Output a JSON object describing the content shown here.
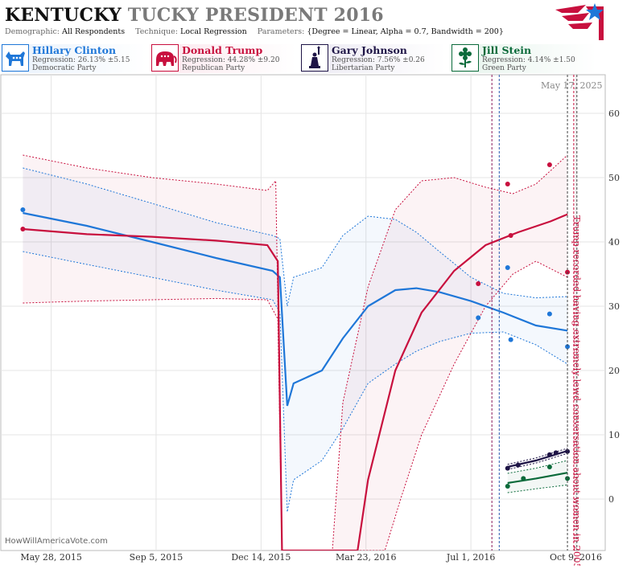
{
  "header": {
    "title_state": "KENTUCKY",
    "title_rest": "TUCKY PRESIDENT 2016",
    "demographic_label": "Demographic:",
    "demographic_value": "All Respondents",
    "technique_label": "Technique:",
    "technique_value": "Local Regression",
    "parameters_label": "Parameters:",
    "parameters_value": "{Degree = Linear, Alpha = 0.7, Bandwidth = 200}"
  },
  "candidates": [
    {
      "name": "Hillary Clinton",
      "regression": "Regression: 26.13% ±5.15",
      "party": "Democratic Party",
      "color": "#1f77d8",
      "bg": "#e8f1fb",
      "icon": "donkey-icon"
    },
    {
      "name": "Donald Trump",
      "regression": "Regression: 44.28% ±9.20",
      "party": "Republican Party",
      "color": "#c8103e",
      "bg": "#fbe8ee",
      "icon": "elephant-icon"
    },
    {
      "name": "Gary Johnson",
      "regression": "Regression: 7.56% ±0.26",
      "party": "Libertarian Party",
      "color": "#1e1446",
      "bg": "#eceaf3",
      "icon": "statue-of-liberty-icon"
    },
    {
      "name": "Jill Stein",
      "regression": "Regression: 4.14% ±1.50",
      "party": "Green Party",
      "color": "#0a6a3a",
      "bg": "#e6f3ec",
      "icon": "flower-icon"
    }
  ],
  "date_stamp": "May 17, 2025",
  "watermark": "HowWillAmericaVote.com",
  "annotation": "Trump recorded having extremely lewd conversation about women in 2005",
  "chart_data": {
    "type": "line",
    "x_ticks": [
      "May 28, 2015",
      "Sep 5, 2015",
      "Dec 14, 2015",
      "Mar 23, 2016",
      "Jul 1, 2016",
      "Oct 9, 2016"
    ],
    "y_ticks": [
      0,
      10,
      20,
      30,
      40,
      50,
      60
    ],
    "ylim": [
      -8,
      66
    ],
    "xlim": [
      "2015-04-10",
      "2016-11-06"
    ],
    "series": [
      {
        "name": "Hillary Clinton",
        "color": "#1f77d8",
        "line": [
          [
            "2015-05-01",
            44.5
          ],
          [
            "2015-07-01",
            42.5
          ],
          [
            "2015-09-01",
            40
          ],
          [
            "2015-11-01",
            37.5
          ],
          [
            "2015-12-25",
            35.5
          ],
          [
            "2016-01-01",
            34.5
          ],
          [
            "2016-01-08",
            14.5
          ],
          [
            "2016-01-14",
            18
          ],
          [
            "2016-02-10",
            20
          ],
          [
            "2016-03-01",
            25
          ],
          [
            "2016-03-25",
            30
          ],
          [
            "2016-04-20",
            32.5
          ],
          [
            "2016-05-10",
            32.8
          ],
          [
            "2016-06-01",
            32.2
          ],
          [
            "2016-07-01",
            30.8
          ],
          [
            "2016-08-01",
            29
          ],
          [
            "2016-09-01",
            27
          ],
          [
            "2016-10-01",
            26.2
          ]
        ],
        "upper": [
          [
            "2015-05-01",
            51.5
          ],
          [
            "2015-07-01",
            49
          ],
          [
            "2015-09-01",
            46
          ],
          [
            "2015-11-01",
            43
          ],
          [
            "2015-12-25",
            41
          ],
          [
            "2016-01-01",
            40.5
          ],
          [
            "2016-01-08",
            30
          ],
          [
            "2016-01-14",
            34.5
          ],
          [
            "2016-02-10",
            36
          ],
          [
            "2016-03-01",
            41
          ],
          [
            "2016-03-25",
            44
          ],
          [
            "2016-04-20",
            43.5
          ],
          [
            "2016-05-10",
            41.5
          ],
          [
            "2016-06-01",
            38.5
          ],
          [
            "2016-07-01",
            34.5
          ],
          [
            "2016-08-01",
            32
          ],
          [
            "2016-09-01",
            31.3
          ],
          [
            "2016-10-01",
            31.5
          ]
        ],
        "lower": [
          [
            "2015-05-01",
            38.5
          ],
          [
            "2015-07-01",
            36.5
          ],
          [
            "2015-09-01",
            34.5
          ],
          [
            "2015-11-01",
            32.5
          ],
          [
            "2015-12-25",
            31
          ],
          [
            "2016-01-01",
            29
          ],
          [
            "2016-01-08",
            -2
          ],
          [
            "2016-01-14",
            3
          ],
          [
            "2016-02-10",
            6
          ],
          [
            "2016-03-01",
            11
          ],
          [
            "2016-03-25",
            18
          ],
          [
            "2016-04-20",
            21
          ],
          [
            "2016-05-10",
            23
          ],
          [
            "2016-06-01",
            24.5
          ],
          [
            "2016-07-01",
            25.8
          ],
          [
            "2016-08-01",
            26
          ],
          [
            "2016-09-01",
            24
          ],
          [
            "2016-10-01",
            21
          ]
        ],
        "points": [
          [
            "2016-07-08",
            28.2
          ],
          [
            "2016-08-05",
            36
          ],
          [
            "2016-08-08",
            24.8
          ],
          [
            "2016-09-14",
            28.8
          ],
          [
            "2016-10-01",
            23.7
          ]
        ]
      },
      {
        "name": "Donald Trump",
        "color": "#c8103e",
        "line": [
          [
            "2015-05-01",
            42
          ],
          [
            "2015-07-01",
            41.2
          ],
          [
            "2015-09-01",
            40.8
          ],
          [
            "2015-11-01",
            40.2
          ],
          [
            "2015-12-20",
            39.5
          ],
          [
            "2015-12-30",
            37
          ],
          [
            "2016-01-03",
            -8
          ],
          [
            "2016-03-15",
            -8
          ],
          [
            "2016-03-25",
            3
          ],
          [
            "2016-04-20",
            20
          ],
          [
            "2016-05-15",
            29
          ],
          [
            "2016-06-15",
            35.5
          ],
          [
            "2016-07-15",
            39.5
          ],
          [
            "2016-08-15",
            41.5
          ],
          [
            "2016-09-15",
            43.2
          ],
          [
            "2016-10-01",
            44.3
          ]
        ],
        "upper": [
          [
            "2015-05-01",
            53.5
          ],
          [
            "2015-07-01",
            51.5
          ],
          [
            "2015-09-01",
            50
          ],
          [
            "2015-11-01",
            49
          ],
          [
            "2015-12-20",
            48
          ],
          [
            "2015-12-28",
            49.5
          ],
          [
            "2016-01-03",
            -8
          ],
          [
            "2016-02-20",
            -8
          ],
          [
            "2016-03-01",
            15
          ],
          [
            "2016-03-25",
            33
          ],
          [
            "2016-04-20",
            45
          ],
          [
            "2016-05-15",
            49.5
          ],
          [
            "2016-06-15",
            50
          ],
          [
            "2016-07-15",
            48.5
          ],
          [
            "2016-08-10",
            47.5
          ],
          [
            "2016-09-01",
            49
          ],
          [
            "2016-10-01",
            53.5
          ]
        ],
        "lower": [
          [
            "2015-05-01",
            30.5
          ],
          [
            "2015-07-01",
            30.8
          ],
          [
            "2015-09-01",
            31
          ],
          [
            "2015-11-01",
            31.2
          ],
          [
            "2015-12-20",
            31
          ],
          [
            "2015-12-30",
            28
          ],
          [
            "2016-01-03",
            -8
          ],
          [
            "2016-04-10",
            -8
          ],
          [
            "2016-04-25",
            0
          ],
          [
            "2016-05-15",
            10
          ],
          [
            "2016-06-15",
            21
          ],
          [
            "2016-07-15",
            30
          ],
          [
            "2016-08-10",
            35
          ],
          [
            "2016-09-01",
            37
          ],
          [
            "2016-10-01",
            34.5
          ]
        ],
        "points": [
          [
            "2015-05-01",
            42
          ],
          [
            "2016-07-08",
            33.5
          ],
          [
            "2016-08-05",
            49
          ],
          [
            "2016-08-08",
            41
          ],
          [
            "2016-09-14",
            52
          ],
          [
            "2016-10-01",
            35.3
          ]
        ],
        "extra_points": [
          [
            "2015-05-01",
            45
          ]
        ]
      },
      {
        "name": "Gary Johnson",
        "color": "#1e1446",
        "line": [
          [
            "2016-08-05",
            5
          ],
          [
            "2016-09-01",
            6
          ],
          [
            "2016-10-01",
            7.5
          ]
        ],
        "upper": [
          [
            "2016-08-05",
            5.4
          ],
          [
            "2016-09-01",
            6.4
          ],
          [
            "2016-10-01",
            7.9
          ]
        ],
        "lower": [
          [
            "2016-08-05",
            4.6
          ],
          [
            "2016-09-01",
            5.6
          ],
          [
            "2016-10-01",
            7.1
          ]
        ],
        "points": [
          [
            "2016-08-05",
            4.8
          ],
          [
            "2016-08-15",
            5.3
          ],
          [
            "2016-09-14",
            6.9
          ],
          [
            "2016-09-20",
            7.2
          ],
          [
            "2016-10-01",
            7.4
          ]
        ]
      },
      {
        "name": "Jill Stein",
        "color": "#0a6a3a",
        "line": [
          [
            "2016-08-05",
            2.5
          ],
          [
            "2016-09-01",
            3.2
          ],
          [
            "2016-10-01",
            4.1
          ]
        ],
        "upper": [
          [
            "2016-08-05",
            4
          ],
          [
            "2016-09-01",
            4.8
          ],
          [
            "2016-10-01",
            6
          ]
        ],
        "lower": [
          [
            "2016-08-05",
            1
          ],
          [
            "2016-09-01",
            1.6
          ],
          [
            "2016-10-01",
            2.2
          ]
        ],
        "points": [
          [
            "2016-08-05",
            2
          ],
          [
            "2016-08-20",
            3.2
          ],
          [
            "2016-09-14",
            5
          ],
          [
            "2016-10-01",
            3.2
          ]
        ]
      }
    ],
    "vlines": [
      {
        "date": "2016-07-21",
        "color": "#8a1a5a",
        "style": "dashed"
      },
      {
        "date": "2016-07-28",
        "color": "#2a5ab0",
        "style": "dashed"
      },
      {
        "date": "2016-10-01",
        "color": "#444",
        "style": "dashed"
      },
      {
        "date": "2016-10-07",
        "color": "#c8103e",
        "style": "dashed"
      },
      {
        "date": "2016-10-10",
        "color": "#444",
        "style": "dashed"
      }
    ]
  }
}
